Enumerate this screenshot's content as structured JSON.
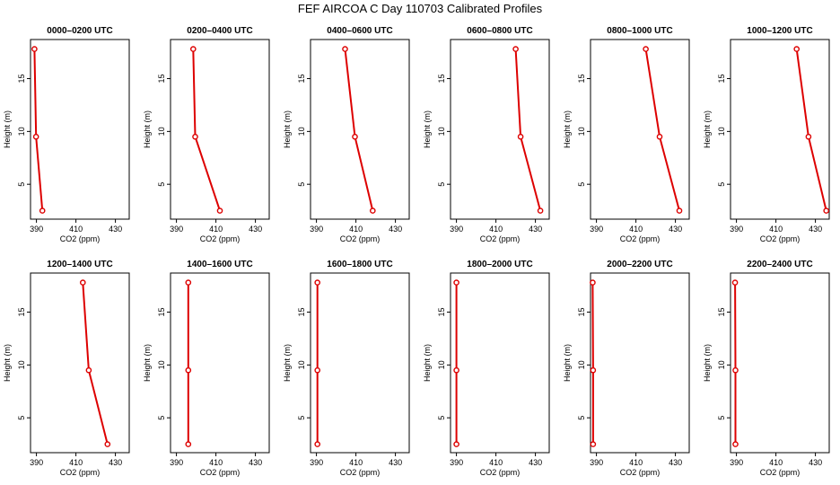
{
  "title": "FEF  AIRCOA C  Day 110703  Calibrated Profiles",
  "colors": {
    "line": "#dd0000",
    "axis": "#000000"
  },
  "chart_data": [
    {
      "type": "line",
      "title": "0000–0200 UTC",
      "xlabel": "CO2 (ppm)",
      "ylabel": "Height (m)",
      "xlim": [
        387,
        437
      ],
      "ylim": [
        1.7,
        18.7
      ],
      "xticks": [
        390,
        410,
        430
      ],
      "yticks": [
        5,
        10,
        15
      ],
      "series": [
        {
          "name": "profile",
          "x": [
            393,
            389.8,
            389
          ],
          "y": [
            2.5,
            9.5,
            17.8
          ]
        }
      ]
    },
    {
      "type": "line",
      "title": "0200–0400 UTC",
      "xlabel": "CO2 (ppm)",
      "ylabel": "Height (m)",
      "xlim": [
        387,
        437
      ],
      "ylim": [
        1.7,
        18.7
      ],
      "xticks": [
        390,
        410,
        430
      ],
      "yticks": [
        5,
        10,
        15
      ],
      "series": [
        {
          "name": "profile",
          "x": [
            412,
            399.5,
            398.5
          ],
          "y": [
            2.5,
            9.5,
            17.8
          ]
        }
      ]
    },
    {
      "type": "line",
      "title": "0400–0600 UTC",
      "xlabel": "CO2 (ppm)",
      "ylabel": "Height (m)",
      "xlim": [
        387,
        437
      ],
      "ylim": [
        1.7,
        18.7
      ],
      "xticks": [
        390,
        410,
        430
      ],
      "yticks": [
        5,
        10,
        15
      ],
      "series": [
        {
          "name": "profile",
          "x": [
            418.5,
            409.5,
            404.5
          ],
          "y": [
            2.5,
            9.5,
            17.8
          ]
        }
      ]
    },
    {
      "type": "line",
      "title": "0600–0800 UTC",
      "xlabel": "CO2 (ppm)",
      "ylabel": "Height (m)",
      "xlim": [
        387,
        437
      ],
      "ylim": [
        1.7,
        18.7
      ],
      "xticks": [
        390,
        410,
        430
      ],
      "yticks": [
        5,
        10,
        15
      ],
      "series": [
        {
          "name": "profile",
          "x": [
            432.5,
            422.5,
            420
          ],
          "y": [
            2.5,
            9.5,
            17.8
          ]
        }
      ]
    },
    {
      "type": "line",
      "title": "0800–1000 UTC",
      "xlabel": "CO2 (ppm)",
      "ylabel": "Height (m)",
      "xlim": [
        387,
        437
      ],
      "ylim": [
        1.7,
        18.7
      ],
      "xticks": [
        390,
        410,
        430
      ],
      "yticks": [
        5,
        10,
        15
      ],
      "series": [
        {
          "name": "profile",
          "x": [
            432,
            422,
            415
          ],
          "y": [
            2.5,
            9.5,
            17.8
          ]
        }
      ]
    },
    {
      "type": "line",
      "title": "1000–1200 UTC",
      "xlabel": "CO2 (ppm)",
      "ylabel": "Height (m)",
      "xlim": [
        387,
        437
      ],
      "ylim": [
        1.7,
        18.7
      ],
      "xticks": [
        390,
        410,
        430
      ],
      "yticks": [
        5,
        10,
        15
      ],
      "series": [
        {
          "name": "profile",
          "x": [
            435.5,
            426.5,
            420.5
          ],
          "y": [
            2.5,
            9.5,
            17.8
          ]
        }
      ]
    },
    {
      "type": "line",
      "title": "1200–1400 UTC",
      "xlabel": "CO2 (ppm)",
      "ylabel": "Height (m)",
      "xlim": [
        387,
        437
      ],
      "ylim": [
        1.7,
        18.7
      ],
      "xticks": [
        390,
        410,
        430
      ],
      "yticks": [
        5,
        10,
        15
      ],
      "series": [
        {
          "name": "profile",
          "x": [
            426,
            416.5,
            413.5
          ],
          "y": [
            2.5,
            9.5,
            17.8
          ]
        }
      ]
    },
    {
      "type": "line",
      "title": "1400–1600 UTC",
      "xlabel": "CO2 (ppm)",
      "ylabel": "Height (m)",
      "xlim": [
        387,
        437
      ],
      "ylim": [
        1.7,
        18.7
      ],
      "xticks": [
        390,
        410,
        430
      ],
      "yticks": [
        5,
        10,
        15
      ],
      "series": [
        {
          "name": "profile",
          "x": [
            396,
            396,
            396
          ],
          "y": [
            2.5,
            9.5,
            17.8
          ]
        }
      ]
    },
    {
      "type": "line",
      "title": "1600–1800 UTC",
      "xlabel": "CO2 (ppm)",
      "ylabel": "Height (m)",
      "xlim": [
        387,
        437
      ],
      "ylim": [
        1.7,
        18.7
      ],
      "xticks": [
        390,
        410,
        430
      ],
      "yticks": [
        5,
        10,
        15
      ],
      "series": [
        {
          "name": "profile",
          "x": [
            390.5,
            390.5,
            390.5
          ],
          "y": [
            2.5,
            9.5,
            17.8
          ]
        }
      ]
    },
    {
      "type": "line",
      "title": "1800–2000 UTC",
      "xlabel": "CO2 (ppm)",
      "ylabel": "Height (m)",
      "xlim": [
        387,
        437
      ],
      "ylim": [
        1.7,
        18.7
      ],
      "xticks": [
        390,
        410,
        430
      ],
      "yticks": [
        5,
        10,
        15
      ],
      "series": [
        {
          "name": "profile",
          "x": [
            390,
            390,
            390
          ],
          "y": [
            2.5,
            9.5,
            17.8
          ]
        }
      ]
    },
    {
      "type": "line",
      "title": "2000–2200 UTC",
      "xlabel": "CO2 (ppm)",
      "ylabel": "Height (m)",
      "xlim": [
        387,
        437
      ],
      "ylim": [
        1.7,
        18.7
      ],
      "xticks": [
        390,
        410,
        430
      ],
      "yticks": [
        5,
        10,
        15
      ],
      "series": [
        {
          "name": "profile",
          "x": [
            388.3,
            388.3,
            388.1
          ],
          "y": [
            2.5,
            9.5,
            17.8
          ]
        }
      ]
    },
    {
      "type": "line",
      "title": "2200–2400 UTC",
      "xlabel": "CO2 (ppm)",
      "ylabel": "Height (m)",
      "xlim": [
        387,
        437
      ],
      "ylim": [
        1.7,
        18.7
      ],
      "xticks": [
        390,
        410,
        430
      ],
      "yticks": [
        5,
        10,
        15
      ],
      "series": [
        {
          "name": "profile",
          "x": [
            389.5,
            389.5,
            389.3
          ],
          "y": [
            2.5,
            9.5,
            17.8
          ]
        }
      ]
    }
  ]
}
